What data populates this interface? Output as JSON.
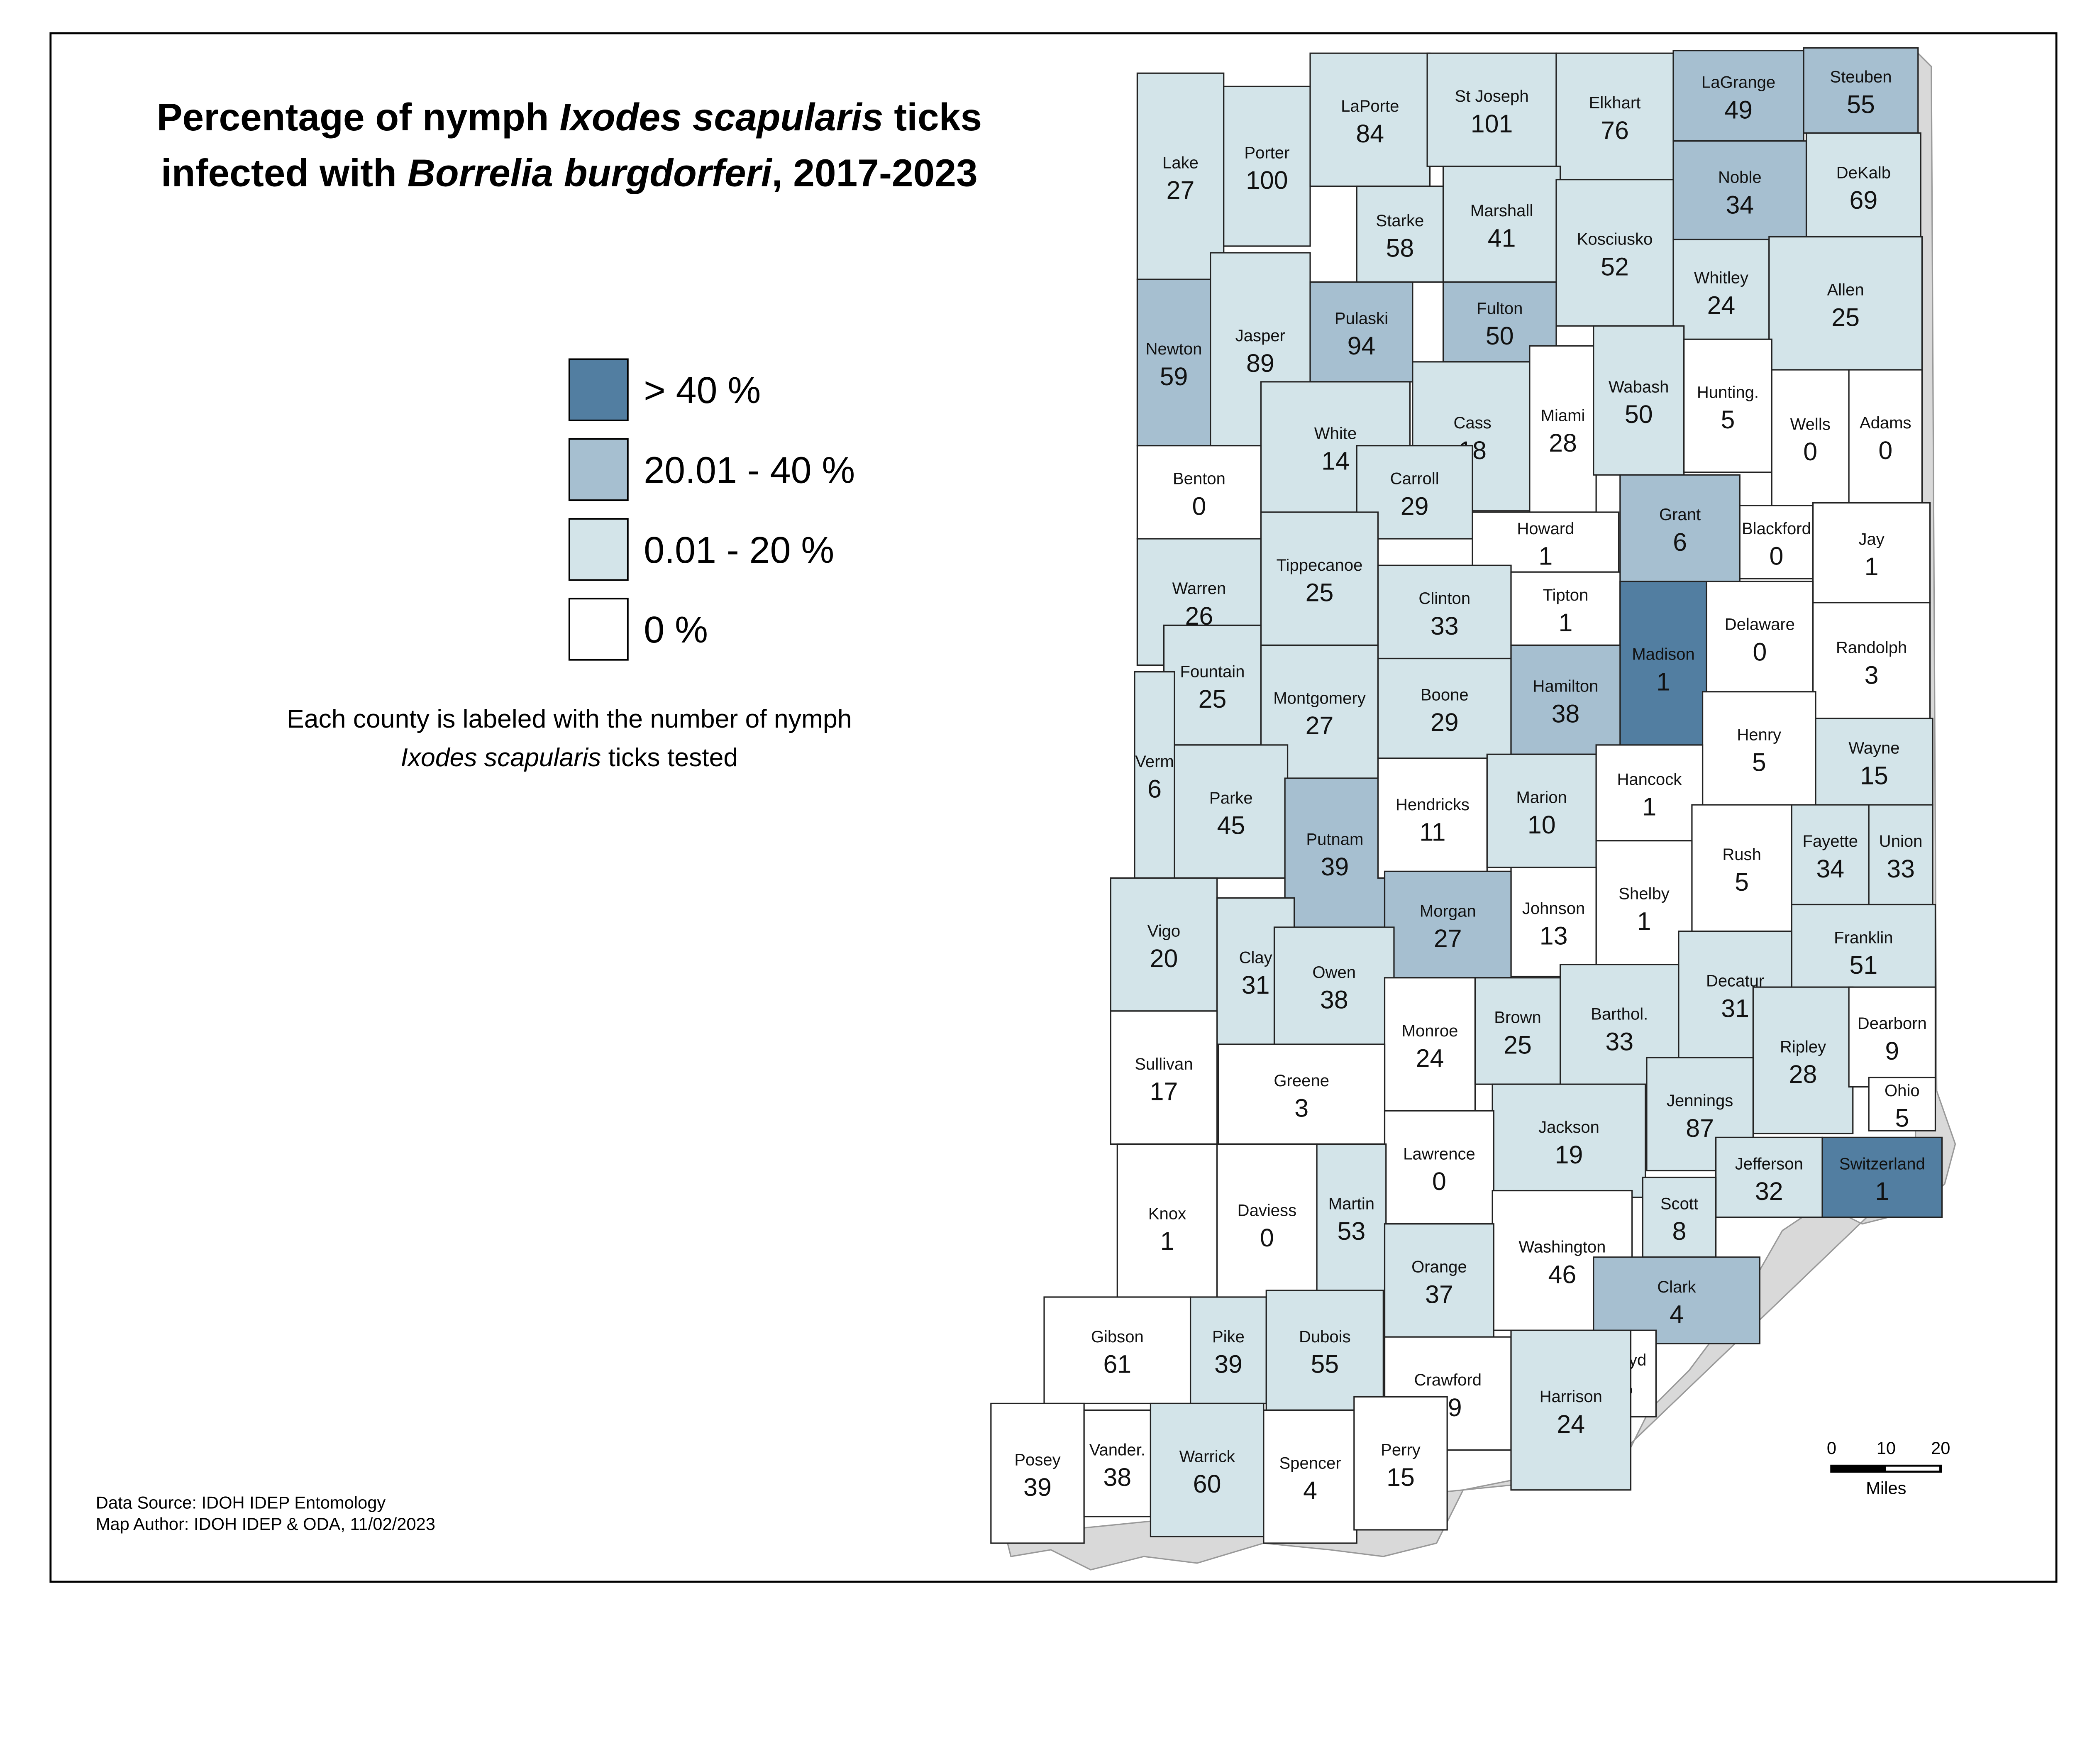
{
  "title": {
    "line1_a": "Percentage of nymph ",
    "line1_b": "Ixodes scapularis",
    "line1_c": " ticks",
    "line2_a": "infected with ",
    "line2_b": "Borrelia burgdorferi",
    "line2_c": ", 2017-2023"
  },
  "legend": [
    {
      "label": "> 40 %",
      "color": "#527ea1"
    },
    {
      "label": "20.01 - 40 %",
      "color": "#a6bfd0"
    },
    {
      "label": "0.01 - 20 %",
      "color": "#d3e4e9"
    },
    {
      "label": "0 %",
      "color": "#ffffff"
    }
  ],
  "note": {
    "line1": "Each county is labeled with the number of nymph",
    "line2_a": "Ixodes scapularis",
    "line2_b": " ticks tested"
  },
  "footer": {
    "source": "Data Source:  IDOH IDEP Entomology",
    "author": "Map Author:  IDOH IDEP & ODA, 11/02/2023"
  },
  "scale_bar": {
    "ticks": [
      "0",
      "10",
      "20"
    ],
    "unit": "Miles"
  },
  "counties": [
    {
      "name": "Lake",
      "value": 27,
      "class": 2
    },
    {
      "name": "Porter",
      "value": 100,
      "class": 2
    },
    {
      "name": "LaPorte",
      "value": 84,
      "class": 2
    },
    {
      "name": "St Joseph",
      "value": 101,
      "class": 2
    },
    {
      "name": "Elkhart",
      "value": 76,
      "class": 2
    },
    {
      "name": "LaGrange",
      "value": 49,
      "class": 1
    },
    {
      "name": "Steuben",
      "value": 55,
      "class": 1
    },
    {
      "name": "Starke",
      "value": 58,
      "class": 2
    },
    {
      "name": "Marshall",
      "value": 41,
      "class": 2
    },
    {
      "name": "Kosciusko",
      "value": 52,
      "class": 2
    },
    {
      "name": "Noble",
      "value": 34,
      "class": 1
    },
    {
      "name": "DeKalb",
      "value": 69,
      "class": 2
    },
    {
      "name": "Whitley",
      "value": 24,
      "class": 2
    },
    {
      "name": "Allen",
      "value": 25,
      "class": 2
    },
    {
      "name": "Newton",
      "value": 59,
      "class": 1
    },
    {
      "name": "Jasper",
      "value": 89,
      "class": 2
    },
    {
      "name": "Pulaski",
      "value": 94,
      "class": 1
    },
    {
      "name": "Fulton",
      "value": 50,
      "class": 1
    },
    {
      "name": "White",
      "value": 14,
      "class": 2
    },
    {
      "name": "Cass",
      "value": 18,
      "class": 2
    },
    {
      "name": "Miami",
      "value": 28,
      "class": 3
    },
    {
      "name": "Wabash",
      "value": 50,
      "class": 2
    },
    {
      "name": "Hunting.",
      "value": 5,
      "class": 3
    },
    {
      "name": "Wells",
      "value": 0,
      "class": 3
    },
    {
      "name": "Adams",
      "value": 0,
      "class": 3
    },
    {
      "name": "Benton",
      "value": 0,
      "class": 3
    },
    {
      "name": "Carroll",
      "value": 29,
      "class": 2
    },
    {
      "name": "Howard",
      "value": 1,
      "class": 3
    },
    {
      "name": "Grant",
      "value": 6,
      "class": 1
    },
    {
      "name": "Blackford",
      "value": 0,
      "class": 3
    },
    {
      "name": "Jay",
      "value": 1,
      "class": 3
    },
    {
      "name": "Warren",
      "value": 26,
      "class": 2
    },
    {
      "name": "Tippecanoe",
      "value": 25,
      "class": 2
    },
    {
      "name": "Clinton",
      "value": 33,
      "class": 2
    },
    {
      "name": "Tipton",
      "value": 1,
      "class": 3
    },
    {
      "name": "Madison",
      "value": 1,
      "class": 0
    },
    {
      "name": "Delaware",
      "value": 0,
      "class": 3
    },
    {
      "name": "Randolph",
      "value": 3,
      "class": 3
    },
    {
      "name": "Fountain",
      "value": 25,
      "class": 2
    },
    {
      "name": "Montgomery",
      "value": 27,
      "class": 2
    },
    {
      "name": "Boone",
      "value": 29,
      "class": 2
    },
    {
      "name": "Hamilton",
      "value": 38,
      "class": 1
    },
    {
      "name": "Henry",
      "value": 5,
      "class": 3
    },
    {
      "name": "Verm",
      "value": 6,
      "class": 2
    },
    {
      "name": "Parke",
      "value": 45,
      "class": 2
    },
    {
      "name": "Putnam",
      "value": 39,
      "class": 1
    },
    {
      "name": "Hendricks",
      "value": 11,
      "class": 3
    },
    {
      "name": "Marion",
      "value": 10,
      "class": 2
    },
    {
      "name": "Hancock",
      "value": 1,
      "class": 3
    },
    {
      "name": "Wayne",
      "value": 15,
      "class": 2
    },
    {
      "name": "Rush",
      "value": 5,
      "class": 3
    },
    {
      "name": "Fayette",
      "value": 34,
      "class": 2
    },
    {
      "name": "Union",
      "value": 33,
      "class": 2
    },
    {
      "name": "Shelby",
      "value": 1,
      "class": 3
    },
    {
      "name": "Johnson",
      "value": 13,
      "class": 3
    },
    {
      "name": "Morgan",
      "value": 27,
      "class": 1
    },
    {
      "name": "Vigo",
      "value": 20,
      "class": 2
    },
    {
      "name": "Clay",
      "value": 31,
      "class": 2
    },
    {
      "name": "Owen",
      "value": 38,
      "class": 2
    },
    {
      "name": "Franklin",
      "value": 51,
      "class": 2
    },
    {
      "name": "Decatur",
      "value": 31,
      "class": 2
    },
    {
      "name": "Monroe",
      "value": 24,
      "class": 3
    },
    {
      "name": "Brown",
      "value": 25,
      "class": 2
    },
    {
      "name": "Barthol.",
      "value": 33,
      "class": 2
    },
    {
      "name": "Ripley",
      "value": 28,
      "class": 2
    },
    {
      "name": "Dearborn",
      "value": 9,
      "class": 3
    },
    {
      "name": "Sullivan",
      "value": 17,
      "class": 3
    },
    {
      "name": "Greene",
      "value": 3,
      "class": 3
    },
    {
      "name": "Jennings",
      "value": 87,
      "class": 2
    },
    {
      "name": "Ohio",
      "value": 5,
      "class": 3
    },
    {
      "name": "Jackson",
      "value": 19,
      "class": 2
    },
    {
      "name": "Lawrence",
      "value": 0,
      "class": 3
    },
    {
      "name": "Switzerland",
      "value": 1,
      "class": 0
    },
    {
      "name": "Jefferson",
      "value": 32,
      "class": 2
    },
    {
      "name": "Knox",
      "value": 1,
      "class": 3
    },
    {
      "name": "Daviess",
      "value": 0,
      "class": 3
    },
    {
      "name": "Martin",
      "value": 53,
      "class": 2
    },
    {
      "name": "Scott",
      "value": 8,
      "class": 2
    },
    {
      "name": "Washington",
      "value": 46,
      "class": 3
    },
    {
      "name": "Orange",
      "value": 37,
      "class": 2
    },
    {
      "name": "Clark",
      "value": 4,
      "class": 1
    },
    {
      "name": "Gibson",
      "value": 61,
      "class": 3
    },
    {
      "name": "Pike",
      "value": 39,
      "class": 2
    },
    {
      "name": "Dubois",
      "value": 55,
      "class": 2
    },
    {
      "name": "Crawford",
      "value": 19,
      "class": 3
    },
    {
      "name": "Floyd",
      "value": 5,
      "class": 3
    },
    {
      "name": "Harrison",
      "value": 24,
      "class": 2
    },
    {
      "name": "Posey",
      "value": 39,
      "class": 3
    },
    {
      "name": "Vander.",
      "value": 38,
      "class": 3
    },
    {
      "name": "Warrick",
      "value": 60,
      "class": 2
    },
    {
      "name": "Spencer",
      "value": 4,
      "class": 3
    },
    {
      "name": "Perry",
      "value": 15,
      "class": 3
    }
  ]
}
